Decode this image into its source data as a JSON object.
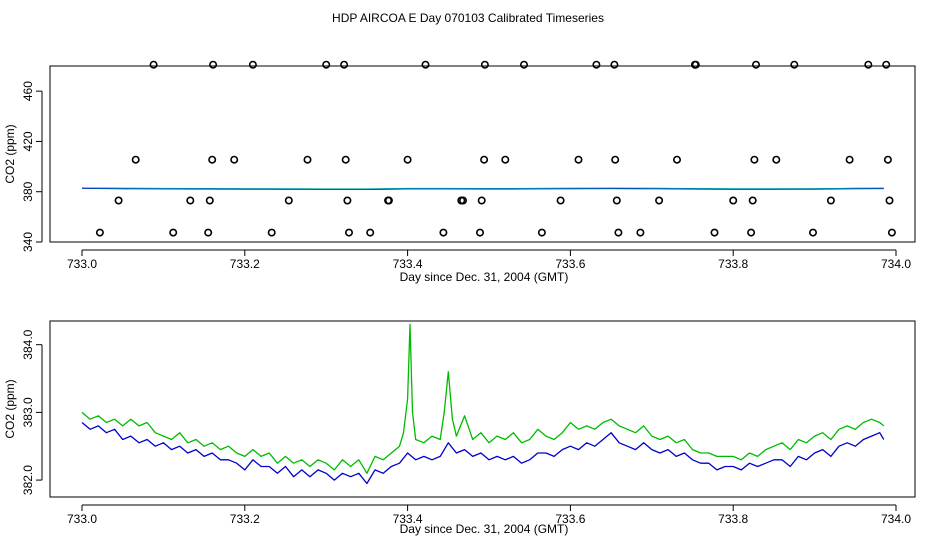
{
  "title": "HDP AIRCOA E  Day 070103  Calibrated Timeseries",
  "colors": {
    "axis": "#000000",
    "series_1": "#0000cc",
    "series_2": "#00bb00",
    "series_3": "#00aaaa",
    "outliers": "#000000"
  },
  "chart_data": [
    {
      "type": "scatter",
      "xlabel": "Day since Dec. 31, 2004 (GMT)",
      "ylabel": "CO2 (ppm)",
      "xlim": [
        733.0,
        734.0
      ],
      "ylim": [
        340,
        480
      ],
      "x_ticks": [
        {
          "value": 733.0,
          "label": "733.0"
        },
        {
          "value": 733.2,
          "label": "733.2"
        },
        {
          "value": 733.4,
          "label": "733.4"
        },
        {
          "value": 733.6,
          "label": "733.6"
        },
        {
          "value": 733.8,
          "label": "733.8"
        },
        {
          "value": 734.0,
          "label": "734.0"
        }
      ],
      "y_ticks": [
        {
          "value": 340,
          "label": "340"
        },
        {
          "value": 380,
          "label": "380"
        },
        {
          "value": 420,
          "label": "420"
        },
        {
          "value": 460,
          "label": "460"
        }
      ],
      "grid": false,
      "series": [
        {
          "kind": "points",
          "x": [
            733.022,
            733.045,
            733.066,
            733.088,
            733.112,
            733.133,
            733.155,
            733.157,
            733.16,
            733.161,
            733.187,
            733.21,
            733.233,
            733.254,
            733.277,
            733.3,
            733.322,
            733.324,
            733.326,
            733.328,
            733.354,
            733.376,
            733.377,
            733.4,
            733.422,
            733.444,
            733.466,
            733.468,
            733.489,
            733.491,
            733.494,
            733.495,
            733.52,
            733.543,
            733.565,
            733.588,
            733.61,
            733.632,
            733.654,
            733.655,
            733.657,
            733.659,
            733.686,
            733.709,
            733.731,
            733.753,
            733.754,
            733.777,
            733.8,
            733.822,
            733.824,
            733.826,
            733.828,
            733.853,
            733.875,
            733.898,
            733.92,
            733.943,
            733.966,
            733.988,
            733.99,
            733.992,
            733.995
          ],
          "y": [
            347.5,
            373,
            405.5,
            481,
            347.5,
            373,
            347.5,
            373,
            405.5,
            481,
            405.5,
            481,
            347.5,
            373,
            405.5,
            481,
            481,
            405.5,
            373,
            347.5,
            347.5,
            373,
            373,
            405.5,
            481,
            347.5,
            373,
            373,
            347.5,
            373,
            405.5,
            481,
            405.5,
            481,
            347.5,
            373,
            405.5,
            481,
            481,
            405.5,
            373,
            347.5,
            347.5,
            373,
            405.5,
            481,
            481,
            347.5,
            373,
            347.5,
            373,
            405.5,
            481,
            405.5,
            481,
            347.5,
            373,
            405.5,
            481,
            481,
            405.5,
            373,
            347.5
          ]
        },
        {
          "kind": "line",
          "x": [
            733.0,
            733.05,
            733.1,
            733.15,
            733.2,
            733.25,
            733.3,
            733.35,
            733.4,
            733.45,
            733.5,
            733.55,
            733.6,
            733.65,
            733.7,
            733.75,
            733.8,
            733.85,
            733.9,
            733.95,
            733.985
          ],
          "y": [
            382.8,
            382.5,
            382.4,
            382.3,
            382.2,
            382.1,
            382.0,
            382.0,
            382.4,
            382.4,
            382.3,
            382.4,
            382.5,
            382.6,
            382.5,
            382.3,
            382.1,
            382.1,
            382.2,
            382.5,
            382.6
          ]
        }
      ]
    },
    {
      "type": "line",
      "xlabel": "Day since Dec. 31, 2004 (GMT)",
      "ylabel": "CO2 (ppm)",
      "xlim": [
        733.0,
        734.0
      ],
      "ylim": [
        381.75,
        384.35
      ],
      "x_ticks": [
        {
          "value": 733.0,
          "label": "733.0"
        },
        {
          "value": 733.2,
          "label": "733.2"
        },
        {
          "value": 733.4,
          "label": "733.4"
        },
        {
          "value": 733.6,
          "label": "733.6"
        },
        {
          "value": 733.8,
          "label": "733.8"
        },
        {
          "value": 734.0,
          "label": "734.0"
        }
      ],
      "y_ticks": [
        {
          "value": 382.0,
          "label": "382.0"
        },
        {
          "value": 383.0,
          "label": "383.0"
        },
        {
          "value": 384.0,
          "label": "384.0"
        }
      ],
      "grid": false,
      "series": [
        {
          "x": [
            733.0,
            733.01,
            733.02,
            733.03,
            733.04,
            733.05,
            733.06,
            733.07,
            733.08,
            733.09,
            733.1,
            733.11,
            733.12,
            733.13,
            733.14,
            733.15,
            733.16,
            733.17,
            733.18,
            733.19,
            733.2,
            733.21,
            733.22,
            733.23,
            733.24,
            733.25,
            733.26,
            733.27,
            733.28,
            733.29,
            733.3,
            733.31,
            733.32,
            733.33,
            733.34,
            733.35,
            733.36,
            733.37,
            733.38,
            733.39,
            733.4,
            733.41,
            733.42,
            733.43,
            733.44,
            733.45,
            733.46,
            733.47,
            733.48,
            733.49,
            733.5,
            733.51,
            733.52,
            733.53,
            733.54,
            733.55,
            733.56,
            733.57,
            733.58,
            733.59,
            733.6,
            733.61,
            733.62,
            733.63,
            733.64,
            733.65,
            733.66,
            733.67,
            733.68,
            733.69,
            733.7,
            733.71,
            733.72,
            733.73,
            733.74,
            733.75,
            733.76,
            733.77,
            733.78,
            733.79,
            733.8,
            733.81,
            733.82,
            733.83,
            733.84,
            733.85,
            733.86,
            733.87,
            733.88,
            733.89,
            733.9,
            733.91,
            733.92,
            733.93,
            733.94,
            733.95,
            733.96,
            733.97,
            733.98,
            733.985
          ],
          "y": [
            382.85,
            382.75,
            382.8,
            382.7,
            382.75,
            382.6,
            382.65,
            382.55,
            382.6,
            382.5,
            382.55,
            382.45,
            382.5,
            382.4,
            382.45,
            382.35,
            382.4,
            382.3,
            382.3,
            382.25,
            382.15,
            382.3,
            382.2,
            382.2,
            382.1,
            382.2,
            382.05,
            382.15,
            382.05,
            382.15,
            382.1,
            382.0,
            382.1,
            382.05,
            382.1,
            381.95,
            382.15,
            382.1,
            382.2,
            382.25,
            382.4,
            382.3,
            382.35,
            382.3,
            382.35,
            382.55,
            382.4,
            382.45,
            382.35,
            382.4,
            382.3,
            382.35,
            382.3,
            382.35,
            382.25,
            382.3,
            382.4,
            382.4,
            382.35,
            382.45,
            382.5,
            382.45,
            382.55,
            382.5,
            382.6,
            382.7,
            382.55,
            382.5,
            382.45,
            382.55,
            382.45,
            382.4,
            382.45,
            382.35,
            382.4,
            382.3,
            382.25,
            382.25,
            382.15,
            382.2,
            382.2,
            382.15,
            382.25,
            382.2,
            382.25,
            382.3,
            382.3,
            382.2,
            382.35,
            382.3,
            382.4,
            382.45,
            382.35,
            382.5,
            382.55,
            382.5,
            382.6,
            382.65,
            382.7,
            382.6
          ]
        },
        {
          "x": [
            733.0,
            733.01,
            733.02,
            733.03,
            733.04,
            733.05,
            733.06,
            733.07,
            733.08,
            733.09,
            733.1,
            733.11,
            733.12,
            733.13,
            733.14,
            733.15,
            733.16,
            733.17,
            733.18,
            733.19,
            733.2,
            733.21,
            733.22,
            733.23,
            733.24,
            733.25,
            733.26,
            733.27,
            733.28,
            733.29,
            733.3,
            733.31,
            733.32,
            733.33,
            733.34,
            733.35,
            733.36,
            733.37,
            733.38,
            733.39,
            733.395,
            733.4,
            733.403,
            733.406,
            733.41,
            733.42,
            733.43,
            733.44,
            733.445,
            733.45,
            733.455,
            733.46,
            733.47,
            733.48,
            733.49,
            733.5,
            733.51,
            733.52,
            733.53,
            733.54,
            733.55,
            733.56,
            733.57,
            733.58,
            733.59,
            733.6,
            733.61,
            733.62,
            733.63,
            733.64,
            733.65,
            733.66,
            733.67,
            733.68,
            733.69,
            733.7,
            733.71,
            733.72,
            733.73,
            733.74,
            733.75,
            733.76,
            733.77,
            733.78,
            733.79,
            733.8,
            733.81,
            733.82,
            733.83,
            733.84,
            733.85,
            733.86,
            733.87,
            733.88,
            733.89,
            733.9,
            733.91,
            733.92,
            733.93,
            733.94,
            733.95,
            733.96,
            733.97,
            733.98,
            733.985
          ],
          "y": [
            383.0,
            382.9,
            382.95,
            382.85,
            382.9,
            382.8,
            382.9,
            382.8,
            382.85,
            382.7,
            382.65,
            382.6,
            382.7,
            382.55,
            382.6,
            382.5,
            382.55,
            382.45,
            382.5,
            382.4,
            382.35,
            382.45,
            382.35,
            382.4,
            382.25,
            382.35,
            382.25,
            382.3,
            382.2,
            382.3,
            382.25,
            382.15,
            382.3,
            382.2,
            382.3,
            382.1,
            382.35,
            382.3,
            382.4,
            382.5,
            382.7,
            383.2,
            384.3,
            383.0,
            382.6,
            382.55,
            382.65,
            382.6,
            383.0,
            383.6,
            382.9,
            382.65,
            382.95,
            382.6,
            382.7,
            382.55,
            382.65,
            382.6,
            382.7,
            382.55,
            382.6,
            382.75,
            382.65,
            382.6,
            382.7,
            382.85,
            382.75,
            382.8,
            382.75,
            382.85,
            382.9,
            382.8,
            382.75,
            382.7,
            382.8,
            382.65,
            382.6,
            382.65,
            382.55,
            382.6,
            382.45,
            382.4,
            382.4,
            382.35,
            382.35,
            382.35,
            382.3,
            382.4,
            382.35,
            382.45,
            382.5,
            382.55,
            382.45,
            382.6,
            382.55,
            382.65,
            382.7,
            382.6,
            382.75,
            382.8,
            382.75,
            382.85,
            382.9,
            382.85,
            382.8
          ]
        }
      ]
    }
  ]
}
